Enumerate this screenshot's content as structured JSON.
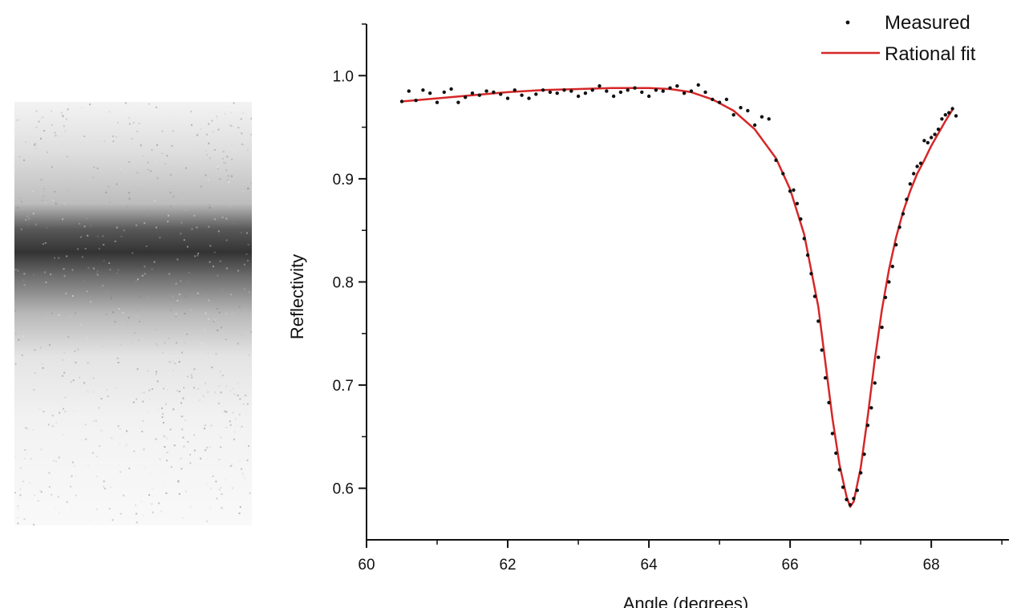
{
  "colors": {
    "measured": "#111111",
    "fit": "#d62728",
    "axis": "#111111"
  },
  "chart_data": {
    "type": "scatter",
    "xlabel": "Angle (degrees)",
    "ylabel": "Reflectivity",
    "xlim": [
      60,
      69.1
    ],
    "ylim": [
      0.55,
      1.05
    ],
    "xticks": [
      {
        "value": 60,
        "label": "60"
      },
      {
        "value": 62,
        "label": "62"
      },
      {
        "value": 64,
        "label": "64"
      },
      {
        "value": 66,
        "label": "66"
      },
      {
        "value": 68,
        "label": "68"
      }
    ],
    "yticks": [
      {
        "value": 0.6,
        "label": "0.6"
      },
      {
        "value": 0.7,
        "label": "0.7"
      },
      {
        "value": 0.8,
        "label": "0.8"
      },
      {
        "value": 0.9,
        "label": "0.9"
      },
      {
        "value": 1.0,
        "label": "1.0"
      }
    ],
    "grid": false,
    "legend_position": "top-right",
    "series": [
      {
        "name": "Measured",
        "kind": "scatter",
        "x": [
          60.5,
          60.6,
          60.7,
          60.8,
          60.9,
          61.0,
          61.1,
          61.2,
          61.3,
          61.4,
          61.5,
          61.6,
          61.7,
          61.8,
          61.9,
          62.0,
          62.1,
          62.2,
          62.3,
          62.4,
          62.5,
          62.6,
          62.7,
          62.8,
          62.9,
          63.0,
          63.1,
          63.2,
          63.3,
          63.4,
          63.5,
          63.6,
          63.7,
          63.8,
          63.9,
          64.0,
          64.1,
          64.2,
          64.3,
          64.4,
          64.5,
          64.6,
          64.7,
          64.8,
          64.9,
          65.0,
          65.1,
          65.2,
          65.3,
          65.4,
          65.5,
          65.6,
          65.7,
          65.8,
          65.9,
          66.0,
          66.05,
          66.1,
          66.15,
          66.2,
          66.25,
          66.3,
          66.35,
          66.4,
          66.45,
          66.5,
          66.55,
          66.6,
          66.65,
          66.7,
          66.75,
          66.8,
          66.85,
          66.9,
          66.95,
          67.0,
          67.05,
          67.1,
          67.15,
          67.2,
          67.25,
          67.3,
          67.35,
          67.4,
          67.45,
          67.5,
          67.55,
          67.6,
          67.65,
          67.7,
          67.75,
          67.8,
          67.85,
          67.9,
          67.95,
          68.0,
          68.05,
          68.1,
          68.15,
          68.2,
          68.25,
          68.3,
          68.35
        ],
        "y": [
          0.975,
          0.985,
          0.976,
          0.986,
          0.983,
          0.974,
          0.984,
          0.987,
          0.974,
          0.979,
          0.983,
          0.981,
          0.985,
          0.984,
          0.982,
          0.978,
          0.986,
          0.981,
          0.978,
          0.982,
          0.986,
          0.984,
          0.983,
          0.986,
          0.985,
          0.98,
          0.983,
          0.986,
          0.99,
          0.985,
          0.98,
          0.984,
          0.986,
          0.988,
          0.984,
          0.98,
          0.986,
          0.985,
          0.988,
          0.99,
          0.983,
          0.985,
          0.991,
          0.984,
          0.977,
          0.974,
          0.977,
          0.962,
          0.969,
          0.966,
          0.952,
          0.96,
          0.958,
          0.918,
          0.905,
          0.888,
          0.889,
          0.876,
          0.861,
          0.842,
          0.826,
          0.808,
          0.786,
          0.762,
          0.734,
          0.707,
          0.683,
          0.653,
          0.634,
          0.618,
          0.601,
          0.589,
          0.584,
          0.59,
          0.598,
          0.615,
          0.633,
          0.661,
          0.678,
          0.702,
          0.727,
          0.756,
          0.785,
          0.8,
          0.815,
          0.836,
          0.853,
          0.866,
          0.88,
          0.895,
          0.905,
          0.912,
          0.915,
          0.937,
          0.935,
          0.94,
          0.943,
          0.948,
          0.958,
          0.962,
          0.964,
          0.968,
          0.961
        ]
      },
      {
        "name": "Rational fit",
        "kind": "line",
        "x": [
          60.5,
          61.0,
          61.5,
          62.0,
          62.5,
          63.0,
          63.5,
          64.0,
          64.3,
          64.6,
          64.9,
          65.2,
          65.5,
          65.8,
          66.0,
          66.2,
          66.4,
          66.5,
          66.6,
          66.7,
          66.8,
          66.85,
          66.9,
          67.0,
          67.1,
          67.2,
          67.3,
          67.4,
          67.5,
          67.6,
          67.7,
          67.8,
          67.9,
          68.0,
          68.1,
          68.2,
          68.3
        ],
        "y": [
          0.975,
          0.978,
          0.981,
          0.984,
          0.986,
          0.987,
          0.988,
          0.988,
          0.987,
          0.984,
          0.977,
          0.966,
          0.948,
          0.92,
          0.89,
          0.846,
          0.776,
          0.722,
          0.668,
          0.623,
          0.592,
          0.582,
          0.587,
          0.62,
          0.67,
          0.725,
          0.773,
          0.812,
          0.843,
          0.868,
          0.888,
          0.905,
          0.918,
          0.932,
          0.944,
          0.956,
          0.967
        ]
      }
    ]
  }
}
